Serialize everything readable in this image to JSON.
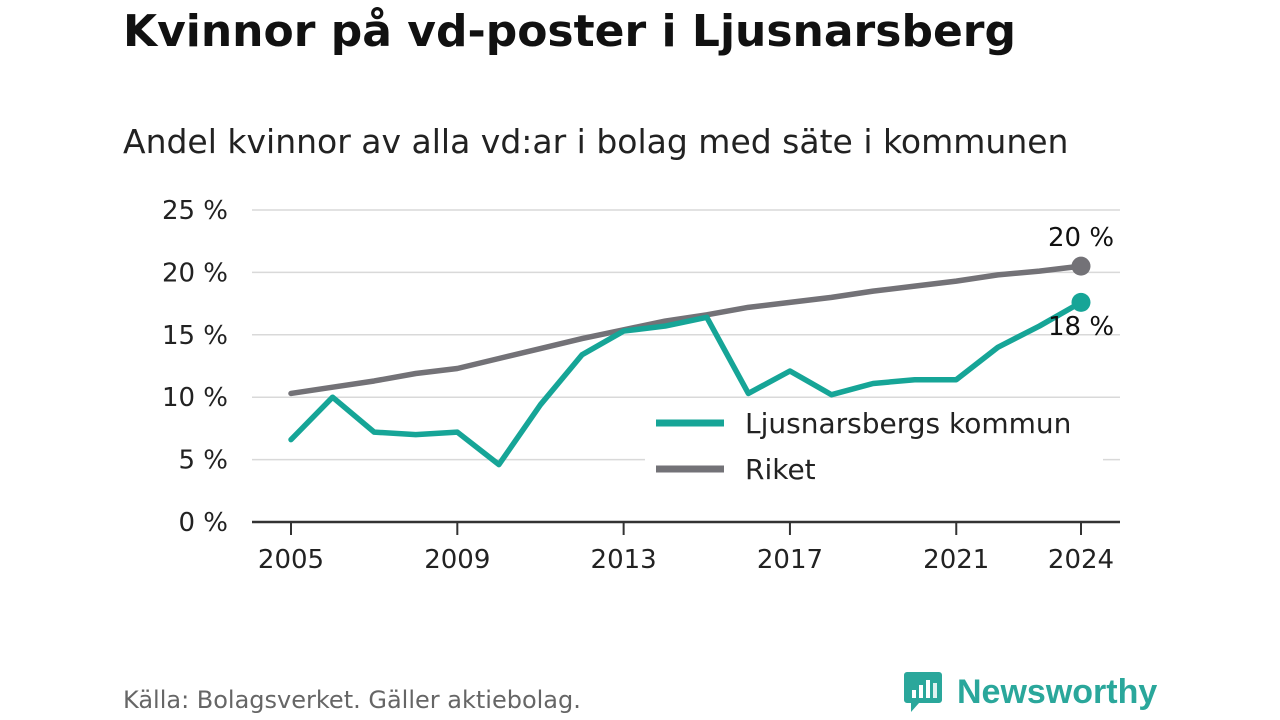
{
  "header": {
    "title": "Kvinnor på vd-poster i Ljusnarsberg",
    "subtitle": "Andel kvinnor av alla vd:ar i bolag med säte i kommunen"
  },
  "footer": {
    "source": "Källa: Bolagsverket. Gäller aktiebolag.",
    "brand": "Newsworthy"
  },
  "colors": {
    "kommun": "#16a597",
    "riket": "#737277",
    "grid": "#d9d9d9",
    "axis": "#333333",
    "brand": "#2aa79b"
  },
  "chart_data": {
    "type": "line",
    "title": "Andel kvinnor av alla vd:ar i bolag med säte i kommunen",
    "xlabel": "",
    "ylabel": "",
    "x": [
      2005,
      2006,
      2007,
      2008,
      2009,
      2010,
      2011,
      2012,
      2013,
      2014,
      2015,
      2016,
      2017,
      2018,
      2019,
      2020,
      2021,
      2022,
      2023,
      2024
    ],
    "x_ticks": [
      "2005",
      "2009",
      "2013",
      "2017",
      "2021",
      "2024"
    ],
    "y_ticks": [
      "0 %",
      "5 %",
      "10 %",
      "15 %",
      "20 %",
      "25 %"
    ],
    "ylim": [
      0,
      25
    ],
    "grid": true,
    "legend_position": "bottom-right",
    "series": [
      {
        "name": "Ljusnarsbergs kommun",
        "color": "#16a597",
        "values": [
          6.6,
          10.0,
          7.2,
          7.0,
          7.2,
          4.6,
          9.4,
          13.4,
          15.3,
          15.7,
          16.4,
          10.3,
          12.1,
          10.2,
          11.1,
          11.4,
          11.4,
          14.0,
          15.7,
          17.6
        ],
        "end_label": "18 %"
      },
      {
        "name": "Riket",
        "color": "#737277",
        "values": [
          10.3,
          10.8,
          11.3,
          11.9,
          12.3,
          13.1,
          13.9,
          14.7,
          15.4,
          16.1,
          16.6,
          17.2,
          17.6,
          18.0,
          18.5,
          18.9,
          19.3,
          19.8,
          20.1,
          20.5
        ],
        "end_label": "20 %"
      }
    ]
  }
}
